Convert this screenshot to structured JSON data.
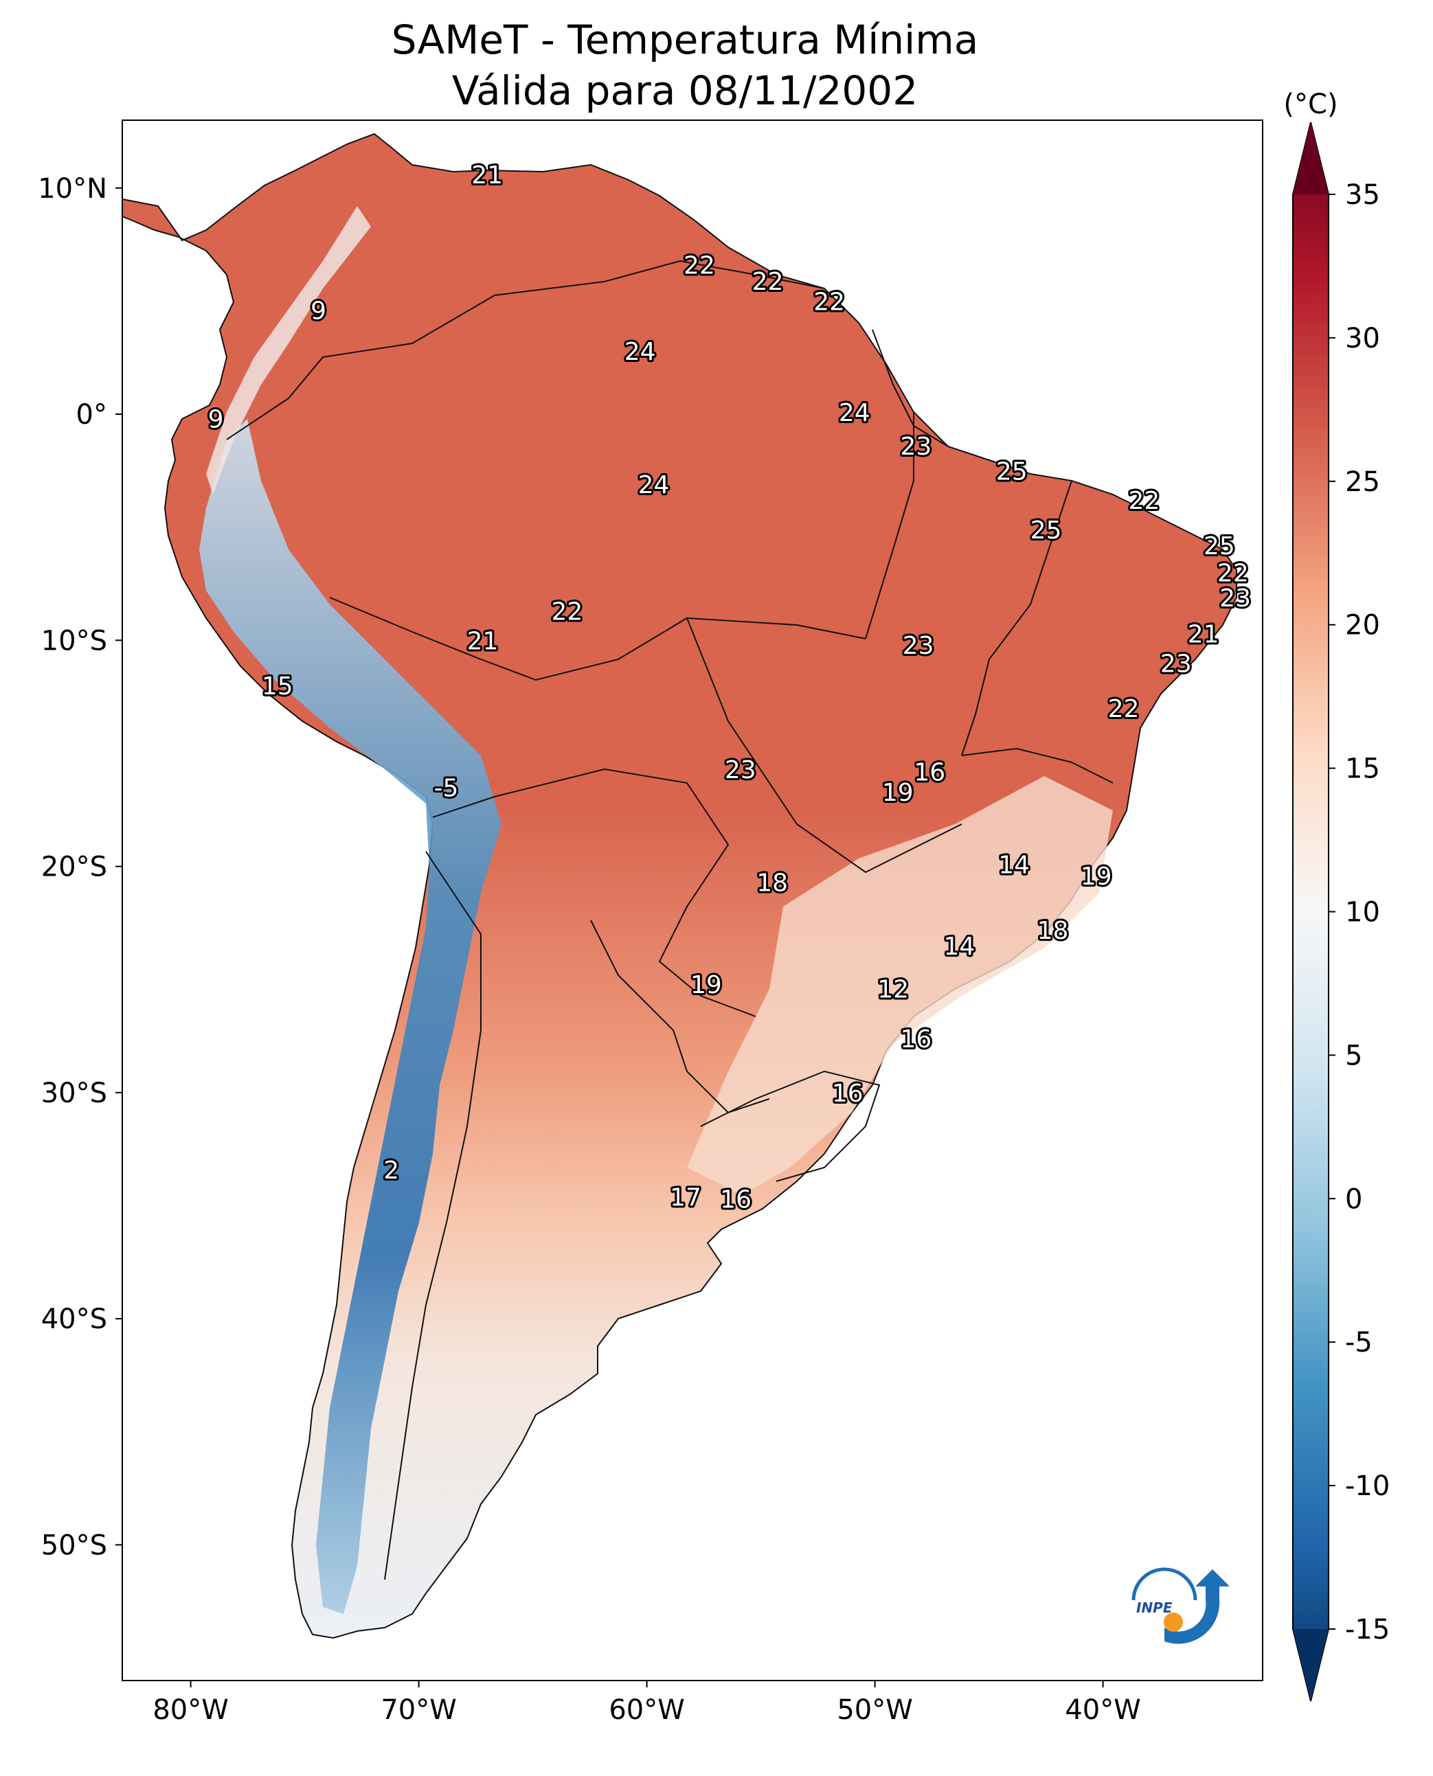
{
  "title_line1": "SAMeT - Temperatura Mínima",
  "title_line2": "Válida para 08/11/2002",
  "colorbar": {
    "unit_label": "(°C)",
    "ticks": [
      "35",
      "30",
      "25",
      "20",
      "15",
      "10",
      "5",
      "0",
      "-5",
      "-10",
      "-15"
    ],
    "range": [
      -15,
      35
    ],
    "colors": [
      "#053061",
      "#2166ac",
      "#4393c3",
      "#92c5de",
      "#d1e5f0",
      "#f7f7f7",
      "#fddbc7",
      "#f4a582",
      "#d6604d",
      "#b2182b",
      "#67001f"
    ]
  },
  "axes": {
    "lon_ticks": [
      "80°W",
      "70°W",
      "60°W",
      "50°W",
      "40°W"
    ],
    "lat_ticks": [
      "10°N",
      "0°",
      "10°S",
      "20°S",
      "30°S",
      "40°S",
      "50°S"
    ],
    "lon_range": [
      -83,
      -33
    ],
    "lat_range": [
      -56,
      13
    ]
  },
  "temperature_labels": [
    {
      "value": "21",
      "lon": -67,
      "lat": 10.6
    },
    {
      "value": "22",
      "lon": -57.7,
      "lat": 6.6
    },
    {
      "value": "22",
      "lon": -54.7,
      "lat": 5.9
    },
    {
      "value": "22",
      "lon": -52,
      "lat": 5.0
    },
    {
      "value": "9",
      "lon": -74.4,
      "lat": 4.6
    },
    {
      "value": "24",
      "lon": -60.3,
      "lat": 2.8
    },
    {
      "value": "9",
      "lon": -78.9,
      "lat": -0.2
    },
    {
      "value": "24",
      "lon": -50.9,
      "lat": 0.1
    },
    {
      "value": "23",
      "lon": -48.2,
      "lat": -1.4
    },
    {
      "value": "25",
      "lon": -44,
      "lat": -2.5
    },
    {
      "value": "24",
      "lon": -59.7,
      "lat": -3.1
    },
    {
      "value": "22",
      "lon": -38.2,
      "lat": -3.8
    },
    {
      "value": "25",
      "lon": -42.5,
      "lat": -5.1
    },
    {
      "value": "25",
      "lon": -34.9,
      "lat": -5.8
    },
    {
      "value": "22",
      "lon": -34.3,
      "lat": -7.0
    },
    {
      "value": "23",
      "lon": -34.2,
      "lat": -8.1
    },
    {
      "value": "22",
      "lon": -63.5,
      "lat": -8.7
    },
    {
      "value": "21",
      "lon": -35.6,
      "lat": -9.7
    },
    {
      "value": "21",
      "lon": -67.2,
      "lat": -10.0
    },
    {
      "value": "23",
      "lon": -48.1,
      "lat": -10.2
    },
    {
      "value": "23",
      "lon": -36.8,
      "lat": -11.0
    },
    {
      "value": "15",
      "lon": -76.2,
      "lat": -12.0
    },
    {
      "value": "22",
      "lon": -39.1,
      "lat": -13.0
    },
    {
      "value": "23",
      "lon": -55.9,
      "lat": -15.7
    },
    {
      "value": "16",
      "lon": -47.6,
      "lat": -15.8
    },
    {
      "value": "-5",
      "lon": -68.8,
      "lat": -16.5
    },
    {
      "value": "19",
      "lon": -49,
      "lat": -16.7
    },
    {
      "value": "14",
      "lon": -43.9,
      "lat": -19.9
    },
    {
      "value": "19",
      "lon": -40.3,
      "lat": -20.4
    },
    {
      "value": "18",
      "lon": -54.5,
      "lat": -20.7
    },
    {
      "value": "18",
      "lon": -42.2,
      "lat": -22.8
    },
    {
      "value": "14",
      "lon": -46.3,
      "lat": -23.5
    },
    {
      "value": "19",
      "lon": -57.4,
      "lat": -25.2
    },
    {
      "value": "12",
      "lon": -49.2,
      "lat": -25.4
    },
    {
      "value": "16",
      "lon": -48.2,
      "lat": -27.6
    },
    {
      "value": "16",
      "lon": -51.2,
      "lat": -30.0
    },
    {
      "value": "2",
      "lon": -71.2,
      "lat": -33.4
    },
    {
      "value": "17",
      "lon": -58.3,
      "lat": -34.6
    },
    {
      "value": "16",
      "lon": -56.1,
      "lat": -34.7
    }
  ]
}
